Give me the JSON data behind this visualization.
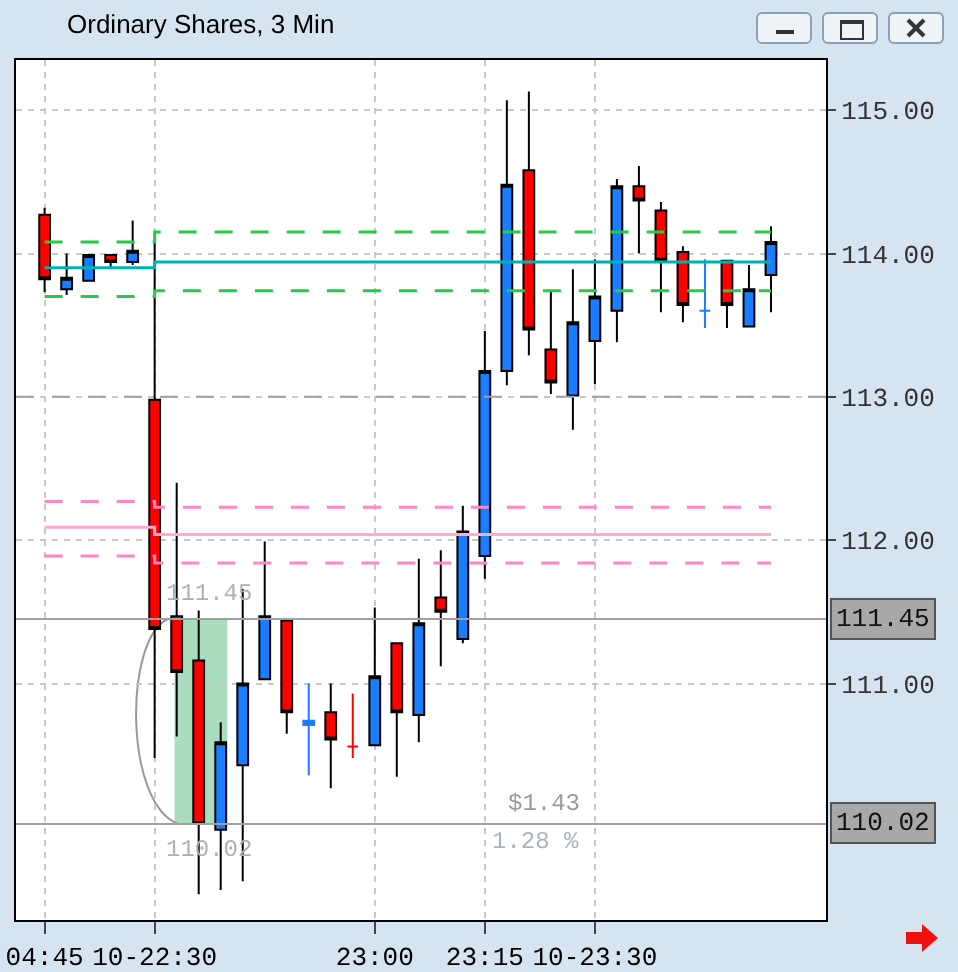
{
  "chart_data": {
    "type": "candlestick",
    "title": "Ordinary Shares, 3 Min",
    "categories": [
      "04:45",
      null,
      null,
      null,
      null,
      "10-22:30",
      null,
      null,
      null,
      null,
      null,
      null,
      null,
      null,
      null,
      "23:00",
      null,
      null,
      null,
      null,
      "23:15",
      null,
      null,
      null,
      null,
      "10-23:30",
      null,
      null,
      null,
      null,
      null,
      null,
      null,
      null
    ],
    "ohlc": [
      [
        114.27,
        114.32,
        113.73,
        113.82
      ],
      [
        113.75,
        114.0,
        113.71,
        113.83
      ],
      [
        113.81,
        113.99,
        113.81,
        113.99
      ],
      [
        113.99,
        113.99,
        113.89,
        113.94
      ],
      [
        113.94,
        114.23,
        113.92,
        114.02
      ],
      [
        112.98,
        114.08,
        110.48,
        111.38
      ],
      [
        111.47,
        112.4,
        110.63,
        111.08
      ],
      [
        111.16,
        111.51,
        109.53,
        110.02
      ],
      [
        109.98,
        110.73,
        109.56,
        110.59
      ],
      [
        110.43,
        111.66,
        109.62,
        111.0
      ],
      [
        111.03,
        111.99,
        111.03,
        111.47
      ],
      [
        111.44,
        111.44,
        110.65,
        110.8
      ],
      [
        110.71,
        111.0,
        110.36,
        110.74
      ],
      [
        110.8,
        111.0,
        110.27,
        110.61
      ],
      [
        110.56,
        110.93,
        110.48,
        110.56
      ],
      [
        110.57,
        111.53,
        110.57,
        111.05
      ],
      [
        111.28,
        111.28,
        110.35,
        110.8
      ],
      [
        110.78,
        111.87,
        110.59,
        111.42
      ],
      [
        111.6,
        111.93,
        111.12,
        111.5
      ],
      [
        111.31,
        112.24,
        111.28,
        112.06
      ],
      [
        111.89,
        113.46,
        111.73,
        113.18
      ],
      [
        113.18,
        115.07,
        113.08,
        114.48
      ],
      [
        114.58,
        115.13,
        113.29,
        113.47
      ],
      [
        113.33,
        113.74,
        113.02,
        113.1
      ],
      [
        113.01,
        113.89,
        112.77,
        113.52
      ],
      [
        113.39,
        113.96,
        113.09,
        113.7
      ],
      [
        113.6,
        114.52,
        113.38,
        114.47
      ],
      [
        114.47,
        114.61,
        114.0,
        114.37
      ],
      [
        114.3,
        114.36,
        113.59,
        113.95
      ],
      [
        114.01,
        114.05,
        113.52,
        113.64
      ],
      [
        113.6,
        113.96,
        113.48,
        113.6
      ],
      [
        113.95,
        113.95,
        113.48,
        113.64
      ],
      [
        113.49,
        113.92,
        113.49,
        113.75
      ],
      [
        113.85,
        114.19,
        113.59,
        114.08
      ]
    ],
    "colors": [
      "#ff0000",
      "#1a7cff",
      "#1a7cff",
      "#ff0000",
      "#1a7cff",
      "#ff0000",
      "#ff0000",
      "#ff0000",
      "#1a7cff",
      "#1a7cff",
      "#1a7cff",
      "#ff0000",
      "#1a7cff",
      "#ff0000",
      "#ff0000",
      "#1a7cff",
      "#ff0000",
      "#1a7cff",
      "#ff0000",
      "#1a7cff",
      "#1a7cff",
      "#1a7cff",
      "#ff0000",
      "#ff0000",
      "#1a7cff",
      "#1a7cff",
      "#1a7cff",
      "#ff0000",
      "#ff0000",
      "#ff0000",
      "#1a7cff",
      "#ff0000",
      "#1a7cff",
      "#1a7cff"
    ],
    "series": [
      {
        "type": "step",
        "color": "#22cc44",
        "line_style": "dashed",
        "values": [
          114.08,
          114.08,
          114.08,
          114.08,
          114.08,
          114.15,
          114.15,
          114.15,
          114.15,
          114.15,
          114.15,
          114.15,
          114.15,
          114.15,
          114.15,
          114.15,
          114.15,
          114.15,
          114.15,
          114.15,
          114.15,
          114.15,
          114.15,
          114.15,
          114.15,
          114.15,
          114.15,
          114.15,
          114.15,
          114.15,
          114.15,
          114.15,
          114.15,
          114.15
        ]
      },
      {
        "type": "step",
        "color": "#00b2b2",
        "line_style": "solid",
        "values": [
          113.9,
          113.9,
          113.9,
          113.9,
          113.9,
          113.94,
          113.94,
          113.94,
          113.94,
          113.94,
          113.94,
          113.94,
          113.94,
          113.94,
          113.94,
          113.94,
          113.94,
          113.94,
          113.94,
          113.94,
          113.94,
          113.94,
          113.94,
          113.94,
          113.94,
          113.94,
          113.94,
          113.94,
          113.94,
          113.94,
          113.94,
          113.94,
          113.94,
          113.94
        ]
      },
      {
        "type": "step",
        "color": "#22cc44",
        "line_style": "dashed",
        "values": [
          113.7,
          113.7,
          113.7,
          113.7,
          113.7,
          113.74,
          113.74,
          113.74,
          113.74,
          113.74,
          113.74,
          113.74,
          113.74,
          113.74,
          113.74,
          113.74,
          113.74,
          113.74,
          113.74,
          113.74,
          113.74,
          113.74,
          113.74,
          113.74,
          113.74,
          113.74,
          113.74,
          113.74,
          113.74,
          113.74,
          113.74,
          113.74,
          113.74,
          113.74
        ]
      },
      {
        "type": "step",
        "color": "#ff88c4",
        "line_style": "dashed",
        "values": [
          112.27,
          112.27,
          112.27,
          112.27,
          112.27,
          112.23,
          112.23,
          112.23,
          112.23,
          112.23,
          112.23,
          112.23,
          112.23,
          112.23,
          112.23,
          112.23,
          112.23,
          112.23,
          112.23,
          112.23,
          112.23,
          112.23,
          112.23,
          112.23,
          112.23,
          112.23,
          112.23,
          112.23,
          112.23,
          112.23,
          112.23,
          112.23,
          112.23,
          112.23
        ]
      },
      {
        "type": "step",
        "color": "#ffaad4",
        "line_style": "solid",
        "values": [
          112.09,
          112.09,
          112.09,
          112.09,
          112.09,
          112.04,
          112.04,
          112.04,
          112.04,
          112.04,
          112.04,
          112.04,
          112.04,
          112.04,
          112.04,
          112.04,
          112.04,
          112.04,
          112.04,
          112.04,
          112.04,
          112.04,
          112.04,
          112.04,
          112.04,
          112.04,
          112.04,
          112.04,
          112.04,
          112.04,
          112.04,
          112.04,
          112.04,
          112.04
        ]
      },
      {
        "type": "step",
        "color": "#ff88c4",
        "line_style": "dashed",
        "values": [
          111.89,
          111.89,
          111.89,
          111.89,
          111.89,
          111.84,
          111.84,
          111.84,
          111.84,
          111.84,
          111.84,
          111.84,
          111.84,
          111.84,
          111.84,
          111.84,
          111.84,
          111.84,
          111.84,
          111.84,
          111.84,
          111.84,
          111.84,
          111.84,
          111.84,
          111.84,
          111.84,
          111.84,
          111.84,
          111.84,
          111.84,
          111.84,
          111.84,
          111.84
        ]
      }
    ],
    "ref_lines": [
      {
        "axis": "y",
        "value": 113,
        "color": "#a0a0a0",
        "line_style": "dashed"
      },
      {
        "axis": "y",
        "value": 111.45,
        "label": "111.45",
        "color": "#a0a0a0",
        "line_style": "solid"
      },
      {
        "axis": "y",
        "value": 110.02,
        "label": "110.02",
        "color": "#a0a0a0",
        "line_style": "solid"
      }
    ],
    "annotations": [
      "$1.43",
      "1.28 %"
    ],
    "ylim": [
      109.35,
      115.35
    ],
    "yticks": [
      {
        "value": 111,
        "label": "111.00"
      },
      {
        "value": 112,
        "label": "112.00"
      },
      {
        "value": 113,
        "label": "113.00"
      },
      {
        "value": 114,
        "label": "114.00"
      },
      {
        "value": 115,
        "label": "115.00"
      }
    ],
    "grid": true
  }
}
